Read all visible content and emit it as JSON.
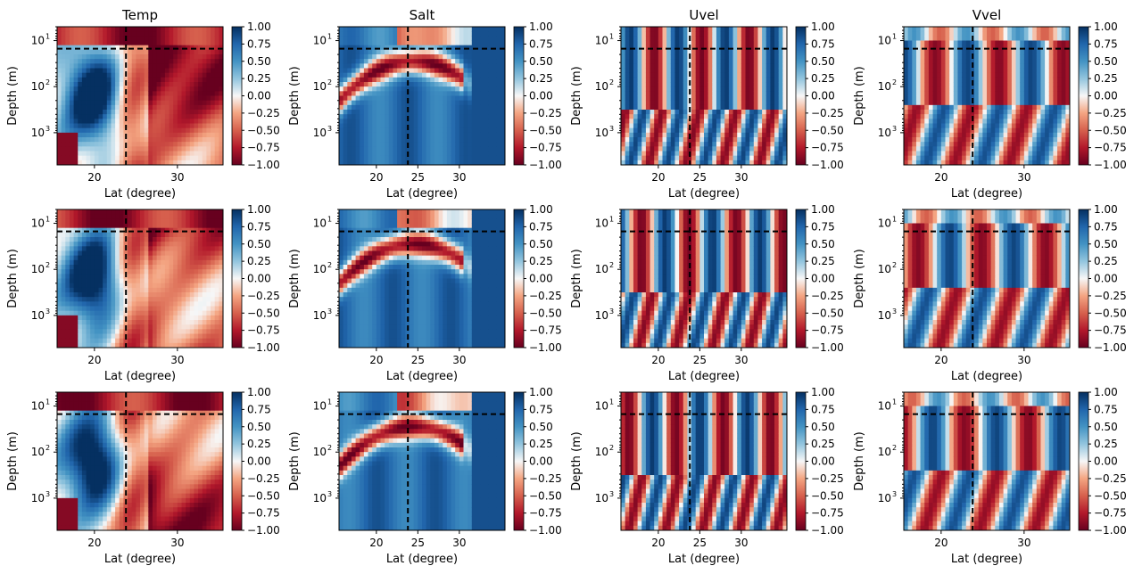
{
  "chart_data": {
    "type": "heatmap",
    "layout": {
      "rows": 3,
      "cols": 4
    },
    "column_titles": [
      "Temp",
      "Salt",
      "Uvel",
      "Vvel"
    ],
    "xlabel": "Lat (degree)",
    "ylabel": "Depth (m)",
    "xlim": [
      15.5,
      35.5
    ],
    "ylim_depth": [
      5000,
      5
    ],
    "yscale": "log",
    "colormap": "RdBu",
    "colorbar": {
      "min": -1.0,
      "max": 1.0,
      "ticks": [
        "1.00",
        "0.75",
        "0.50",
        "0.25",
        "0.00",
        "−0.25",
        "−0.50",
        "−0.75",
        "−1.00"
      ]
    },
    "reference_lines": {
      "latitude": 23.8,
      "depth": 15,
      "style": "dashed"
    },
    "x_ticks_by_column": [
      [
        "20",
        "30"
      ],
      [
        "20",
        "25",
        "30"
      ],
      [
        "20",
        "25",
        "30"
      ],
      [
        "20",
        "30"
      ]
    ],
    "y_tick_labels": [
      "10",
      "10",
      "10"
    ],
    "y_tick_exponents": [
      "1",
      "2",
      "3"
    ],
    "panels": [
      {
        "variable": "Temp",
        "row": 0
      },
      {
        "variable": "Salt",
        "row": 0
      },
      {
        "variable": "Uvel",
        "row": 0
      },
      {
        "variable": "Vvel",
        "row": 0
      },
      {
        "variable": "Temp",
        "row": 1
      },
      {
        "variable": "Salt",
        "row": 1
      },
      {
        "variable": "Uvel",
        "row": 1
      },
      {
        "variable": "Vvel",
        "row": 1
      },
      {
        "variable": "Temp",
        "row": 2
      },
      {
        "variable": "Salt",
        "row": 2
      },
      {
        "variable": "Uvel",
        "row": 2
      },
      {
        "variable": "Vvel",
        "row": 2
      }
    ]
  },
  "colors": {
    "negative": "#67001f",
    "neutral": "#f7f7f7",
    "positive": "#053061",
    "reference_line": "#000000"
  }
}
